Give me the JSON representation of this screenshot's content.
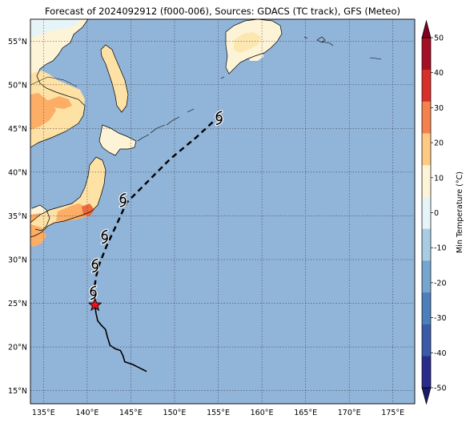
{
  "title": "Forecast of 2024092912 (f000-006), Sources: GDACS (TC track), GFS (Meteo)",
  "map": {
    "lon_range": [
      133.5,
      177.5
    ],
    "lat_range": [
      13.5,
      57.5
    ],
    "lat_ticks": [
      {
        "value": 15,
        "label": "15°N"
      },
      {
        "value": 20,
        "label": "20°N"
      },
      {
        "value": 25,
        "label": "25°N"
      },
      {
        "value": 30,
        "label": "30°N"
      },
      {
        "value": 35,
        "label": "35°N"
      },
      {
        "value": 40,
        "label": "40°N"
      },
      {
        "value": 45,
        "label": "45°N"
      },
      {
        "value": 50,
        "label": "50°N"
      },
      {
        "value": 55,
        "label": "55°N"
      }
    ],
    "lon_ticks": [
      {
        "value": 135,
        "label": "135°E"
      },
      {
        "value": 140,
        "label": "140°E"
      },
      {
        "value": 145,
        "label": "145°E"
      },
      {
        "value": 150,
        "label": "150°E"
      },
      {
        "value": 155,
        "label": "155°E"
      },
      {
        "value": 160,
        "label": "160°E"
      },
      {
        "value": 165,
        "label": "165°E"
      },
      {
        "value": 170,
        "label": "170°E"
      },
      {
        "value": 175,
        "label": "175°E"
      }
    ],
    "ocean_color": "#91b4d9",
    "land_colors": {
      "cool": "#fdf3d6",
      "mild": "#fde1a5",
      "warm": "#fcae67",
      "hot": "#ee6a3d"
    },
    "past_track": [
      [
        140.9,
        24.8
      ],
      [
        141.0,
        23.9
      ],
      [
        141.2,
        23.0
      ],
      [
        141.6,
        22.5
      ],
      [
        142.1,
        22.0
      ],
      [
        142.3,
        21.2
      ],
      [
        142.6,
        20.2
      ],
      [
        143.2,
        19.8
      ],
      [
        143.8,
        19.6
      ],
      [
        144.1,
        19.0
      ],
      [
        144.3,
        18.3
      ],
      [
        145.2,
        18.0
      ],
      [
        146.0,
        17.6
      ],
      [
        146.8,
        17.2
      ]
    ],
    "forecast_track": [
      [
        140.9,
        24.8
      ],
      [
        140.8,
        26.4
      ],
      [
        141.0,
        28.0
      ],
      [
        141.4,
        29.5
      ],
      [
        142.2,
        31.5
      ],
      [
        143.5,
        34.3
      ],
      [
        144.5,
        36.5
      ],
      [
        146.5,
        38.5
      ],
      [
        149.5,
        41.5
      ],
      [
        152.5,
        44.0
      ],
      [
        155.2,
        46.5
      ]
    ],
    "storm_symbols": [
      [
        140.7,
        26.2
      ],
      [
        140.9,
        29.3
      ],
      [
        142.0,
        32.6
      ],
      [
        144.1,
        36.8
      ],
      [
        155.1,
        46.2
      ]
    ],
    "current_position": [
      140.9,
      24.8
    ]
  },
  "colorbar": {
    "label": "Min Temperature (°C)",
    "min": -50,
    "max": 50,
    "ticks": [
      "-50",
      "-40",
      "-30",
      "-20",
      "-10",
      "0",
      "10",
      "20",
      "30",
      "40",
      "50"
    ],
    "colors": [
      "#2a2c8c",
      "#3b5ba8",
      "#4d7fba",
      "#76a5cf",
      "#a8cde2",
      "#e6f4f8",
      "#fdf3d6",
      "#fdc985",
      "#f4824f",
      "#d7302b",
      "#a50f26"
    ],
    "under_color": "#1a1a6e",
    "over_color": "#800020"
  }
}
